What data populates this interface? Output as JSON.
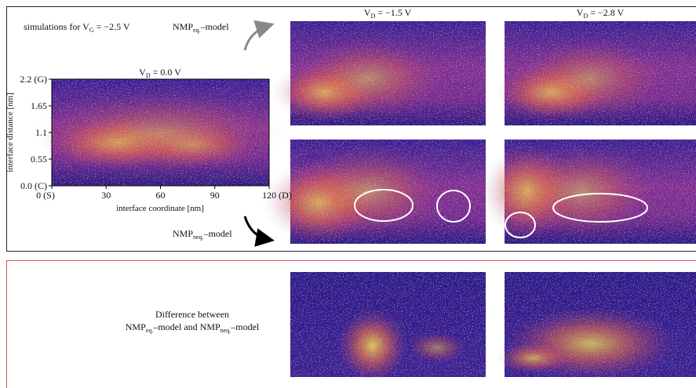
{
  "top_panel": {
    "note": [
      "simulations for V",
      "G",
      " = −2.5 V"
    ],
    "eq_label": [
      "NMP",
      "eq.",
      "–model"
    ],
    "neq_label": [
      "NMP",
      "neq.",
      "–model"
    ],
    "columns": [
      [
        "V",
        "D",
        " = −1.5 V"
      ],
      [
        "V",
        "D",
        " = −2.8 V"
      ]
    ]
  },
  "plot": {
    "title": [
      "V",
      "D",
      " = 0.0 V"
    ],
    "y_label": "interface distance [nm]",
    "x_label": "interface coordinate [nm]",
    "y_ticks": [
      "2.2 (G)",
      "1.65",
      "1.1",
      "0.55",
      "0.0 (C)"
    ],
    "x_ticks": [
      "0 (S)",
      "30",
      "60",
      "90",
      "120 (D)"
    ]
  },
  "bottom_panel": {
    "line1": "Difference between",
    "line2": [
      "NMP",
      "eq.",
      "–model and NMP",
      "neq.",
      "–model"
    ]
  }
}
